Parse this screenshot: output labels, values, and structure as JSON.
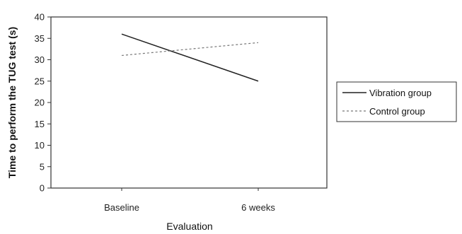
{
  "chart_data": {
    "type": "line",
    "categories": [
      "Baseline",
      "6 weeks"
    ],
    "series": [
      {
        "name": "Vibration group",
        "values": [
          36,
          25
        ],
        "color": "#222222",
        "style": "solid"
      },
      {
        "name": "Control group",
        "values": [
          31,
          34
        ],
        "color": "#777777",
        "style": "dashed"
      }
    ],
    "xlabel": "Evaluation",
    "ylabel": "Time to perform the TUG test (s)",
    "ylim": [
      0,
      40
    ],
    "yticks": [
      "0",
      "5",
      "10",
      "15",
      "20",
      "25",
      "30",
      "35",
      "40"
    ],
    "grid": false,
    "legend_position": "right"
  }
}
